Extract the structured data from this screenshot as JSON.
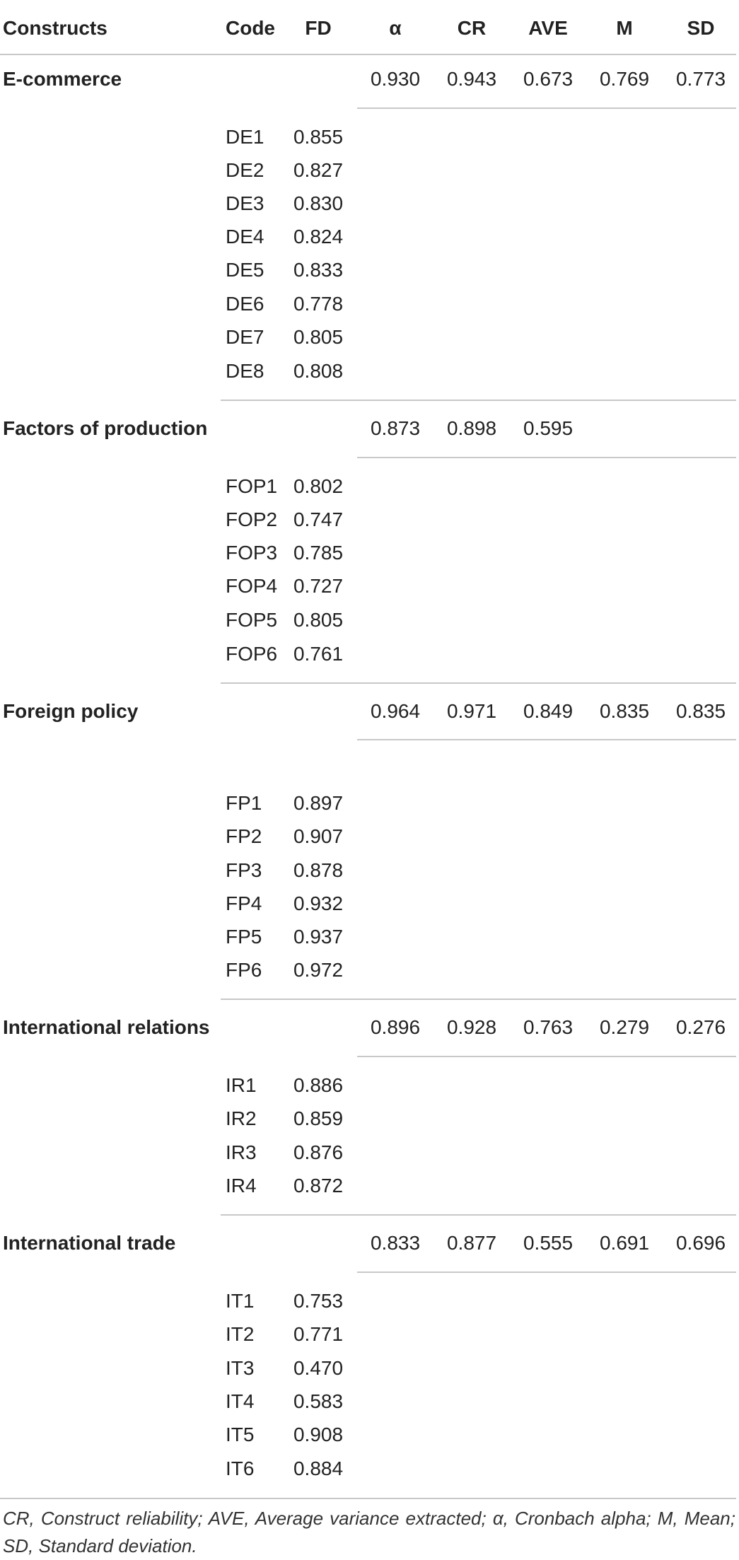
{
  "table": {
    "headers": {
      "constructs": "Constructs",
      "code": "Code",
      "fd": "FD",
      "alpha": "α",
      "cr": "CR",
      "ave": "AVE",
      "m": "M",
      "sd": "SD"
    },
    "groups": [
      {
        "construct": "E-commerce",
        "alpha": "0.930",
        "cr": "0.943",
        "ave": "0.673",
        "m": "0.769",
        "sd": "0.773",
        "items": [
          {
            "code": "DE1",
            "fd": "0.855"
          },
          {
            "code": "DE2",
            "fd": "0.827"
          },
          {
            "code": "DE3",
            "fd": "0.830"
          },
          {
            "code": "DE4",
            "fd": "0.824"
          },
          {
            "code": "DE5",
            "fd": "0.833"
          },
          {
            "code": "DE6",
            "fd": "0.778"
          },
          {
            "code": "DE7",
            "fd": "0.805"
          },
          {
            "code": "DE8",
            "fd": "0.808"
          }
        ]
      },
      {
        "construct": "Factors of production",
        "alpha": "0.873",
        "cr": "0.898",
        "ave": "0.595",
        "m": "",
        "sd": "",
        "items": [
          {
            "code": "FOP1",
            "fd": "0.802"
          },
          {
            "code": "FOP2",
            "fd": "0.747"
          },
          {
            "code": "FOP3",
            "fd": "0.785"
          },
          {
            "code": "FOP4",
            "fd": "0.727"
          },
          {
            "code": "FOP5",
            "fd": "0.805"
          },
          {
            "code": "FOP6",
            "fd": "0.761"
          }
        ]
      },
      {
        "construct": "Foreign policy",
        "alpha": "0.964",
        "cr": "0.971",
        "ave": "0.849",
        "m": "0.835",
        "sd": "0.835",
        "items": [
          {
            "code": "FP1",
            "fd": "0.897"
          },
          {
            "code": "FP2",
            "fd": "0.907"
          },
          {
            "code": "FP3",
            "fd": "0.878"
          },
          {
            "code": "FP4",
            "fd": "0.932"
          },
          {
            "code": "FP5",
            "fd": "0.937"
          },
          {
            "code": "FP6",
            "fd": "0.972"
          }
        ]
      },
      {
        "construct": "International relations",
        "alpha": "0.896",
        "cr": "0.928",
        "ave": "0.763",
        "m": "0.279",
        "sd": "0.276",
        "items": [
          {
            "code": "IR1",
            "fd": "0.886"
          },
          {
            "code": "IR2",
            "fd": "0.859"
          },
          {
            "code": "IR3",
            "fd": "0.876"
          },
          {
            "code": "IR4",
            "fd": "0.872"
          }
        ]
      },
      {
        "construct": "International trade",
        "alpha": "0.833",
        "cr": "0.877",
        "ave": "0.555",
        "m": "0.691",
        "sd": "0.696",
        "items": [
          {
            "code": "IT1",
            "fd": "0.753"
          },
          {
            "code": "IT2",
            "fd": "0.771"
          },
          {
            "code": "IT3",
            "fd": "0.470"
          },
          {
            "code": "IT4",
            "fd": "0.583"
          },
          {
            "code": "IT5",
            "fd": "0.908"
          },
          {
            "code": "IT6",
            "fd": "0.884"
          }
        ]
      }
    ],
    "footnote": "CR, Construct reliability; AVE, Average variance extracted; α, Cronbach alpha; M, Mean; SD, Standard deviation."
  }
}
